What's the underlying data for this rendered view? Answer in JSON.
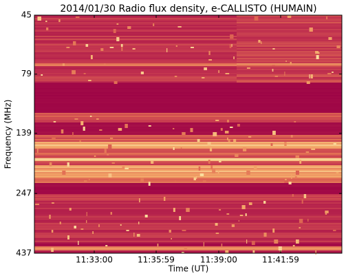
{
  "chart_data": {
    "type": "spectrogram",
    "title": "2014/01/30  Radio flux density, e-CALLISTO (HUMAIN)",
    "x_label": "Time (UT)",
    "y_label": "Frequency (MHz)",
    "xlim": [
      "11:30:07",
      "11:44:56"
    ],
    "xticks": [
      "11:33:00",
      "11:35:59",
      "11:39:00",
      "11:41:59"
    ],
    "ylim": [
      437,
      45
    ],
    "yticks": [
      45,
      79,
      139,
      247,
      437
    ],
    "log_y": true
  }
}
